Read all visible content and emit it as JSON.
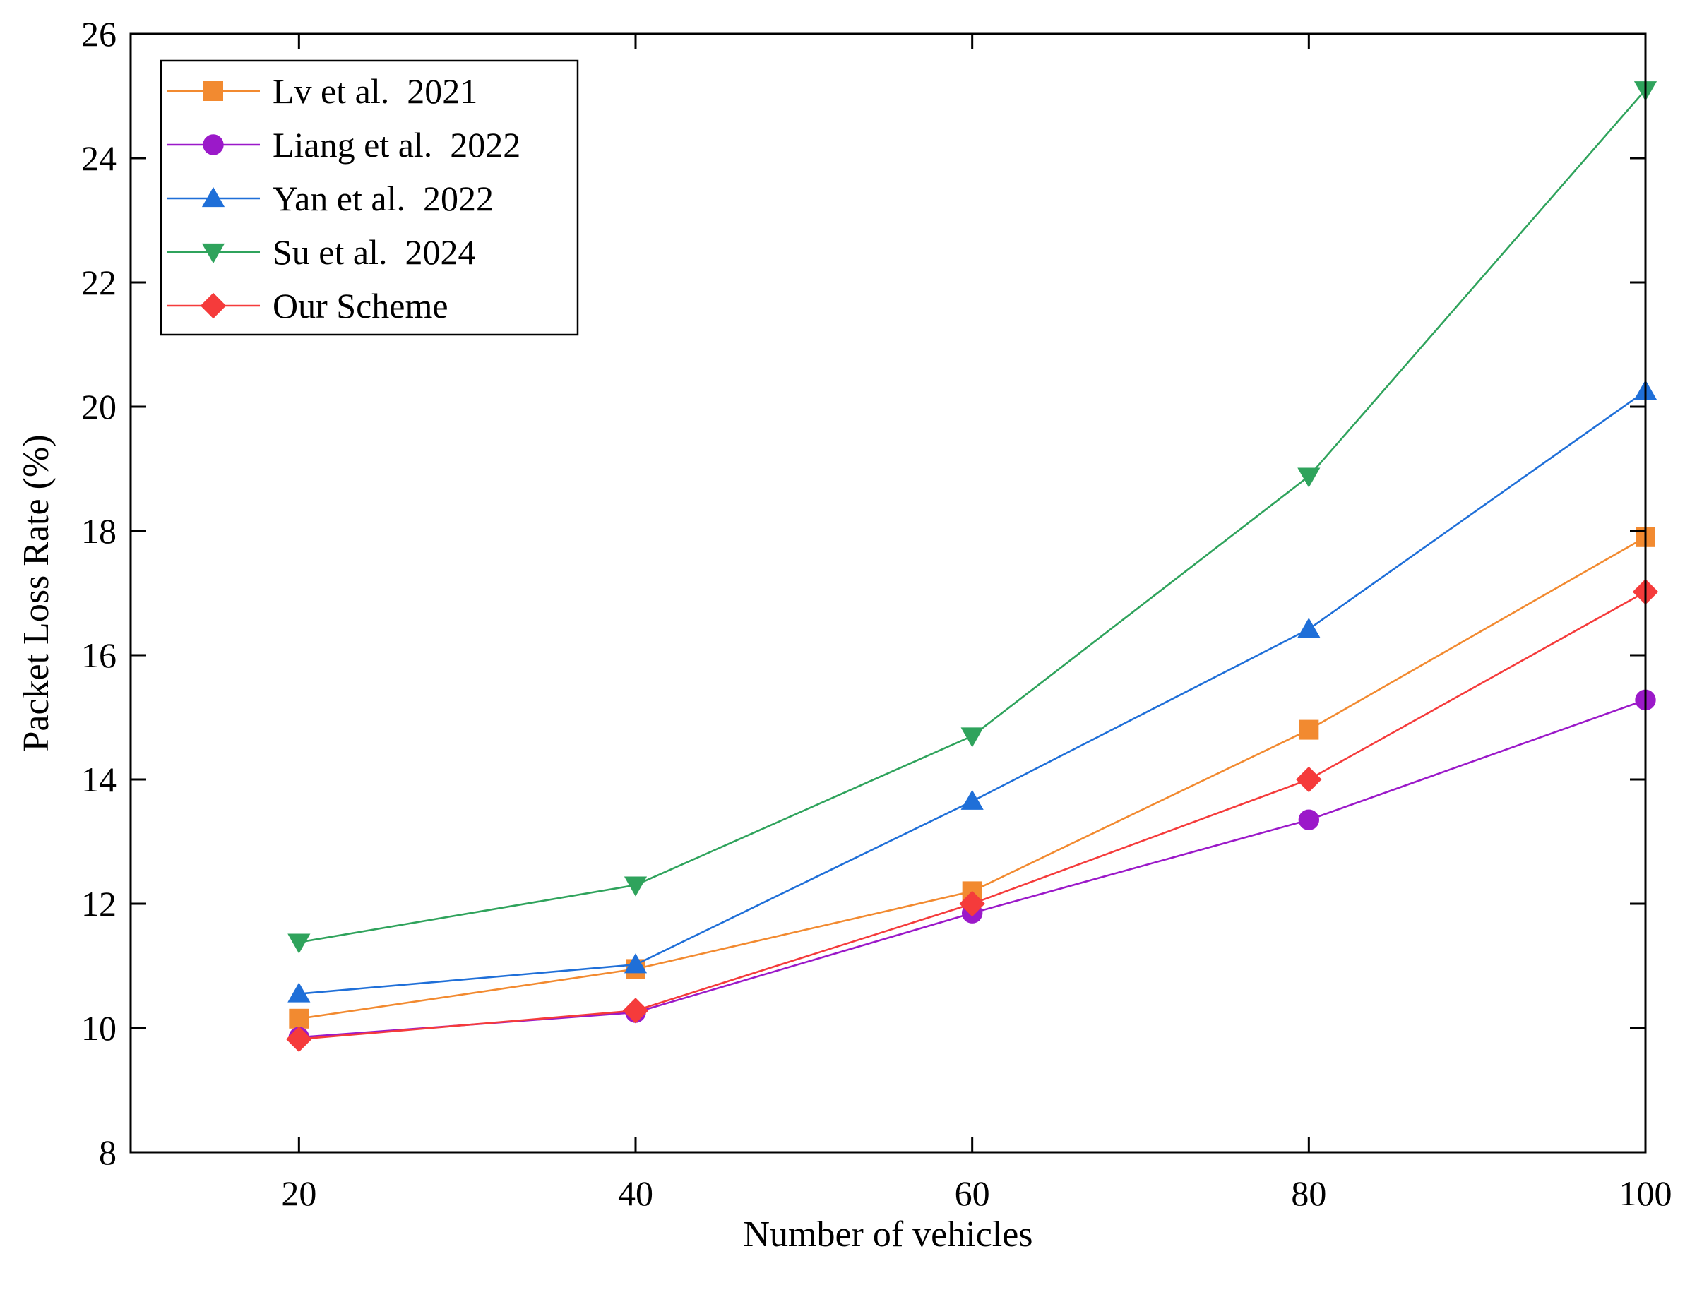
{
  "chart_data": {
    "type": "line",
    "title": "",
    "xlabel": "Number of vehicles",
    "ylabel": "Packet Loss Rate (%)",
    "x": [
      20,
      40,
      60,
      80,
      100
    ],
    "xlim": [
      10,
      100
    ],
    "ylim": [
      8,
      26
    ],
    "xticks": [
      20,
      40,
      60,
      80,
      100
    ],
    "yticks": [
      8,
      10,
      12,
      14,
      16,
      18,
      20,
      22,
      24,
      26
    ],
    "grid": false,
    "legend_position": "top-left",
    "series": [
      {
        "name": "Lv et al.  2021",
        "color": "#F28A30",
        "marker": "square",
        "values": [
          10.15,
          10.95,
          12.2,
          14.8,
          17.9
        ]
      },
      {
        "name": "Liang et al.  2022",
        "color": "#9B19C9",
        "marker": "circle",
        "values": [
          9.85,
          10.25,
          11.85,
          13.35,
          15.28
        ]
      },
      {
        "name": "Yan et al.  2022",
        "color": "#1F6FD8",
        "marker": "triangle-up",
        "values": [
          10.55,
          11.02,
          13.65,
          16.42,
          20.25
        ]
      },
      {
        "name": "Su et al.  2024",
        "color": "#2FA35C",
        "marker": "triangle-down",
        "values": [
          11.38,
          12.3,
          14.7,
          18.88,
          25.1
        ]
      },
      {
        "name": "Our Scheme",
        "color": "#F53B3B",
        "marker": "diamond",
        "values": [
          9.82,
          10.28,
          12.0,
          14.0,
          17.02
        ]
      }
    ]
  }
}
